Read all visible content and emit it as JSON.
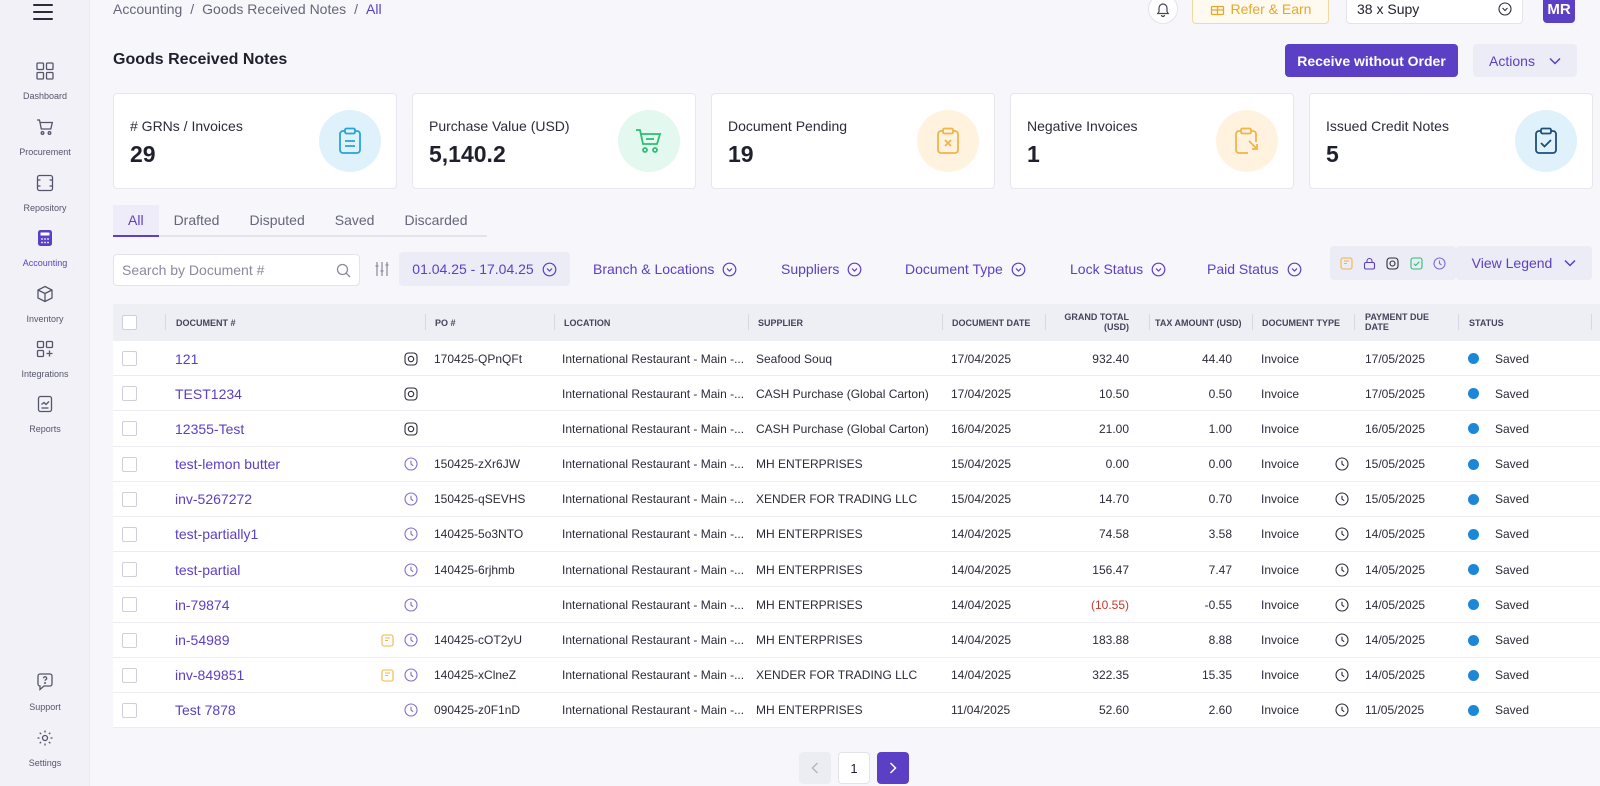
{
  "breadcrumb": {
    "root": "Accounting",
    "section": "Goods Received Notes",
    "current": "All"
  },
  "topbar": {
    "refer_label": "Refer & Earn",
    "org_name": "38 x Supy",
    "avatar_initials": "MR"
  },
  "sidebar": {
    "items": [
      {
        "label": "Dashboard",
        "icon": "dashboard-icon"
      },
      {
        "label": "Procurement",
        "icon": "cart-icon"
      },
      {
        "label": "Repository",
        "icon": "repository-icon"
      },
      {
        "label": "Accounting",
        "icon": "calculator-icon",
        "active": true
      },
      {
        "label": "Inventory",
        "icon": "box-icon"
      },
      {
        "label": "Integrations",
        "icon": "integrations-icon"
      },
      {
        "label": "Reports",
        "icon": "report-icon"
      },
      {
        "label": "Support",
        "icon": "support-icon"
      },
      {
        "label": "Settings",
        "icon": "gear-icon"
      }
    ]
  },
  "page": {
    "title": "Goods Received Notes",
    "primary_button": "Receive without Order",
    "actions_button": "Actions"
  },
  "stats": [
    {
      "label": "# GRNs / Invoices",
      "value": "29",
      "icon": "clipboard-icon",
      "color": "#dff2fb",
      "icon_color": "#2aa3d8"
    },
    {
      "label": "Purchase Value (USD)",
      "value": "5,140.2",
      "icon": "cart-icon",
      "color": "#e3f8ee",
      "icon_color": "#2ebd74"
    },
    {
      "label": "Document Pending",
      "value": "19",
      "icon": "clipboard-x-icon",
      "color": "#fff3e0",
      "icon_color": "#f0b44a"
    },
    {
      "label": "Negative Invoices",
      "value": "1",
      "icon": "clipboard-arrow-icon",
      "color": "#fff3e0",
      "icon_color": "#f0b44a"
    },
    {
      "label": "Issued Credit Notes",
      "value": "5",
      "icon": "clipboard-check-icon",
      "color": "#dff2fb",
      "icon_color": "#1f4e79"
    }
  ],
  "tabs": [
    "All",
    "Drafted",
    "Disputed",
    "Saved",
    "Discarded"
  ],
  "filters": {
    "search_placeholder": "Search by Document #",
    "date_range": "01.04.25 - 17.04.25",
    "branch": "Branch & Locations",
    "suppliers": "Suppliers",
    "document_type": "Document Type",
    "lock_status": "Lock Status",
    "paid_status": "Paid Status",
    "view_legend": "View Legend"
  },
  "table": {
    "headers": {
      "document": "Document #",
      "po": "PO #",
      "location": "Location",
      "supplier": "Supplier",
      "document_date": "Document Date",
      "grand_total": "Grand Total (USD)",
      "tax_amount": "Tax Amount (USD)",
      "document_type": "Document Type",
      "payment_due": "Payment Due Date",
      "status": "Status"
    },
    "rows": [
      {
        "doc": "121",
        "marker": "camera",
        "flag": false,
        "po": "170425-QPnQFt",
        "location": "International Restaurant - Main -...",
        "supplier": "Seafood Souq",
        "date": "17/04/2025",
        "total": "932.40",
        "negative": false,
        "tax": "44.40",
        "type": "Invoice",
        "clock": false,
        "due": "17/05/2025",
        "status": "Saved"
      },
      {
        "doc": "TEST1234",
        "marker": "camera",
        "flag": false,
        "po": "",
        "location": "International Restaurant - Main -...",
        "supplier": "CASH Purchase (Global Carton)",
        "date": "17/04/2025",
        "total": "10.50",
        "negative": false,
        "tax": "0.50",
        "type": "Invoice",
        "clock": false,
        "due": "17/05/2025",
        "status": "Saved"
      },
      {
        "doc": "12355-Test",
        "marker": "camera",
        "flag": false,
        "po": "",
        "location": "International Restaurant - Main -...",
        "supplier": "CASH Purchase (Global Carton)",
        "date": "16/04/2025",
        "total": "21.00",
        "negative": false,
        "tax": "1.00",
        "type": "Invoice",
        "clock": false,
        "due": "16/05/2025",
        "status": "Saved"
      },
      {
        "doc": "test-lemon butter",
        "marker": "clock",
        "flag": false,
        "po": "150425-zXr6JW",
        "location": "International Restaurant - Main -...",
        "supplier": "MH ENTERPRISES",
        "date": "15/04/2025",
        "total": "0.00",
        "negative": false,
        "tax": "0.00",
        "type": "Invoice",
        "clock": true,
        "due": "15/05/2025",
        "status": "Saved"
      },
      {
        "doc": "inv-5267272",
        "marker": "clock",
        "flag": false,
        "po": "150425-qSEVHS",
        "location": "International Restaurant - Main -...",
        "supplier": "XENDER FOR TRADING LLC",
        "date": "15/04/2025",
        "total": "14.70",
        "negative": false,
        "tax": "0.70",
        "type": "Invoice",
        "clock": true,
        "due": "15/05/2025",
        "status": "Saved"
      },
      {
        "doc": "test-partially1",
        "marker": "clock",
        "flag": false,
        "po": "140425-5o3NTO",
        "location": "International Restaurant - Main -...",
        "supplier": "MH ENTERPRISES",
        "date": "14/04/2025",
        "total": "74.58",
        "negative": false,
        "tax": "3.58",
        "type": "Invoice",
        "clock": true,
        "due": "14/05/2025",
        "status": "Saved"
      },
      {
        "doc": "test-partial",
        "marker": "clock",
        "flag": false,
        "po": "140425-6rjhmb",
        "location": "International Restaurant - Main -...",
        "supplier": "MH ENTERPRISES",
        "date": "14/04/2025",
        "total": "156.47",
        "negative": false,
        "tax": "7.47",
        "type": "Invoice",
        "clock": true,
        "due": "14/05/2025",
        "status": "Saved"
      },
      {
        "doc": "in-79874",
        "marker": "clock",
        "flag": false,
        "po": "",
        "location": "International Restaurant - Main -...",
        "supplier": "MH ENTERPRISES",
        "date": "14/04/2025",
        "total": "(10.55)",
        "negative": true,
        "tax": "-0.55",
        "type": "Invoice",
        "clock": true,
        "due": "14/05/2025",
        "status": "Saved"
      },
      {
        "doc": "in-54989",
        "marker": "clock",
        "flag": true,
        "po": "140425-cOT2yU",
        "location": "International Restaurant - Main -...",
        "supplier": "MH ENTERPRISES",
        "date": "14/04/2025",
        "total": "183.88",
        "negative": false,
        "tax": "8.88",
        "type": "Invoice",
        "clock": true,
        "due": "14/05/2025",
        "status": "Saved"
      },
      {
        "doc": "inv-849851",
        "marker": "clock",
        "flag": true,
        "po": "140425-xClneZ",
        "location": "International Restaurant - Main -...",
        "supplier": "XENDER FOR TRADING LLC",
        "date": "14/04/2025",
        "total": "322.35",
        "negative": false,
        "tax": "15.35",
        "type": "Invoice",
        "clock": true,
        "due": "14/05/2025",
        "status": "Saved"
      },
      {
        "doc": "Test 7878",
        "marker": "clock",
        "flag": false,
        "po": "090425-z0F1nD",
        "location": "International Restaurant - Main -...",
        "supplier": "MH ENTERPRISES",
        "date": "11/04/2025",
        "total": "52.60",
        "negative": false,
        "tax": "2.60",
        "type": "Invoice",
        "clock": true,
        "due": "11/05/2025",
        "status": "Saved"
      }
    ]
  },
  "pagination": {
    "current": "1"
  },
  "colors": {
    "accent": "#5b3fc4",
    "status_saved": "#1b87d6",
    "negative": "#c0392b",
    "warning": "#f0b44a"
  }
}
